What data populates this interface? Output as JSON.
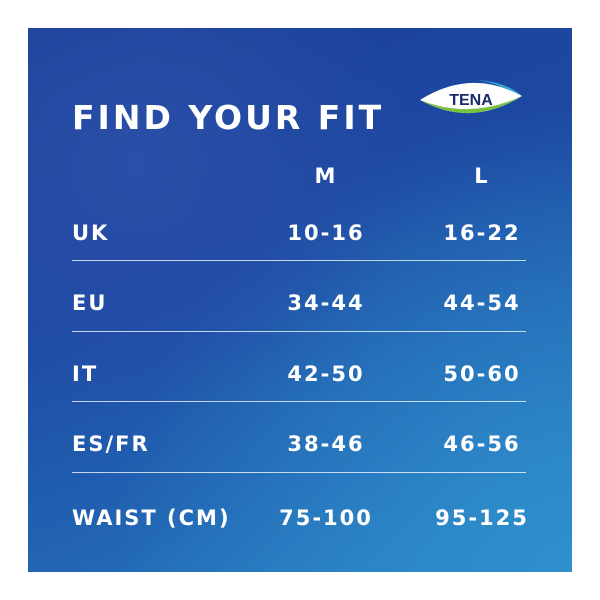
{
  "title": "FIND YOUR FIT",
  "logo": {
    "text": "TENA"
  },
  "columns": [
    "M",
    "L"
  ],
  "rows": [
    {
      "label": "UK",
      "m": "10-16",
      "l": "16-22"
    },
    {
      "label": "EU",
      "m": "34-44",
      "l": "44-54"
    },
    {
      "label": "IT",
      "m": "42-50",
      "l": "50-60"
    },
    {
      "label": "ES/FR",
      "m": "38-46",
      "l": "46-56"
    },
    {
      "label": "WAIST (CM)",
      "m": "75-100",
      "l": "95-125"
    }
  ],
  "colors": {
    "background": "#1d4aa3",
    "text": "#ffffff",
    "logo_text": "#1b2a6b",
    "logo_accent": "#7ac143"
  }
}
